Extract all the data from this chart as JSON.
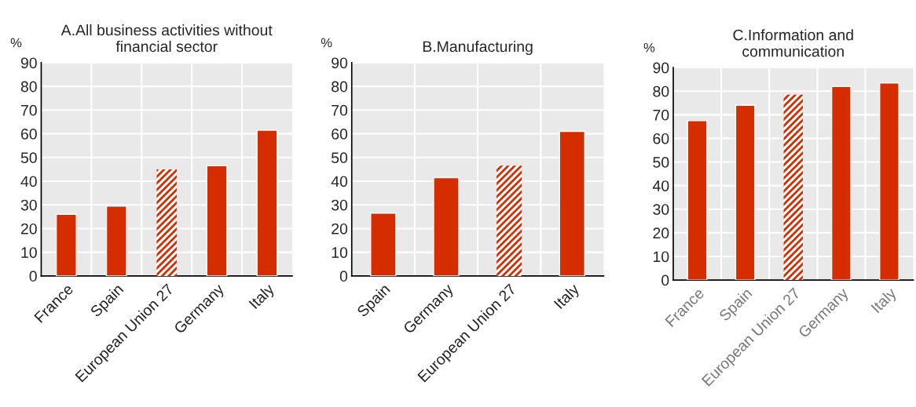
{
  "chart_data": [
    {
      "type": "bar",
      "title": "A.All business activities without\nfinancial sector",
      "ylabel": "%",
      "categories": [
        "France",
        "Spain",
        "European Union 27",
        "Germany",
        "Italy"
      ],
      "series": [
        {
          "color": "#d62d00",
          "values": [
            26,
            29.5,
            null,
            46.5,
            61.5
          ]
        },
        {
          "color": "#d62d00",
          "values": [
            null,
            null,
            45,
            null,
            null
          ]
        }
      ],
      "ylim": [
        0,
        90
      ],
      "yticks": [
        0,
        10,
        20,
        30,
        40,
        50,
        60,
        70,
        80,
        90
      ],
      "grid": true
    },
    {
      "type": "bar",
      "title": "B.Manufacturing",
      "ylabel": "%",
      "categories": [
        "Spain",
        "Germany",
        "European Union 27",
        "Italy"
      ],
      "series": [
        {
          "color": "#d62d00",
          "values": [
            26.5,
            41.5,
            null,
            61
          ]
        },
        {
          "color": "#d62d00",
          "values": [
            null,
            null,
            46.5,
            null
          ]
        }
      ],
      "ylim": [
        0,
        90
      ],
      "yticks": [
        0,
        10,
        20,
        30,
        40,
        50,
        60,
        70,
        80,
        90
      ],
      "grid": true
    },
    {
      "type": "bar",
      "title": "C.Information and\ncommunication",
      "ylabel": "%",
      "categories": [
        "France",
        "Spain",
        "European Union 27",
        "Germany",
        "Italy"
      ],
      "series": [
        {
          "color": "#d62d00",
          "values": [
            67.5,
            74,
            null,
            82,
            83.5
          ]
        },
        {
          "color": "#d62d00",
          "values": [
            null,
            null,
            78.5,
            null,
            null
          ]
        }
      ],
      "ylim": [
        0,
        90
      ],
      "yticks": [
        0,
        10,
        20,
        30,
        40,
        50,
        60,
        70,
        80,
        90
      ],
      "grid": true
    }
  ]
}
